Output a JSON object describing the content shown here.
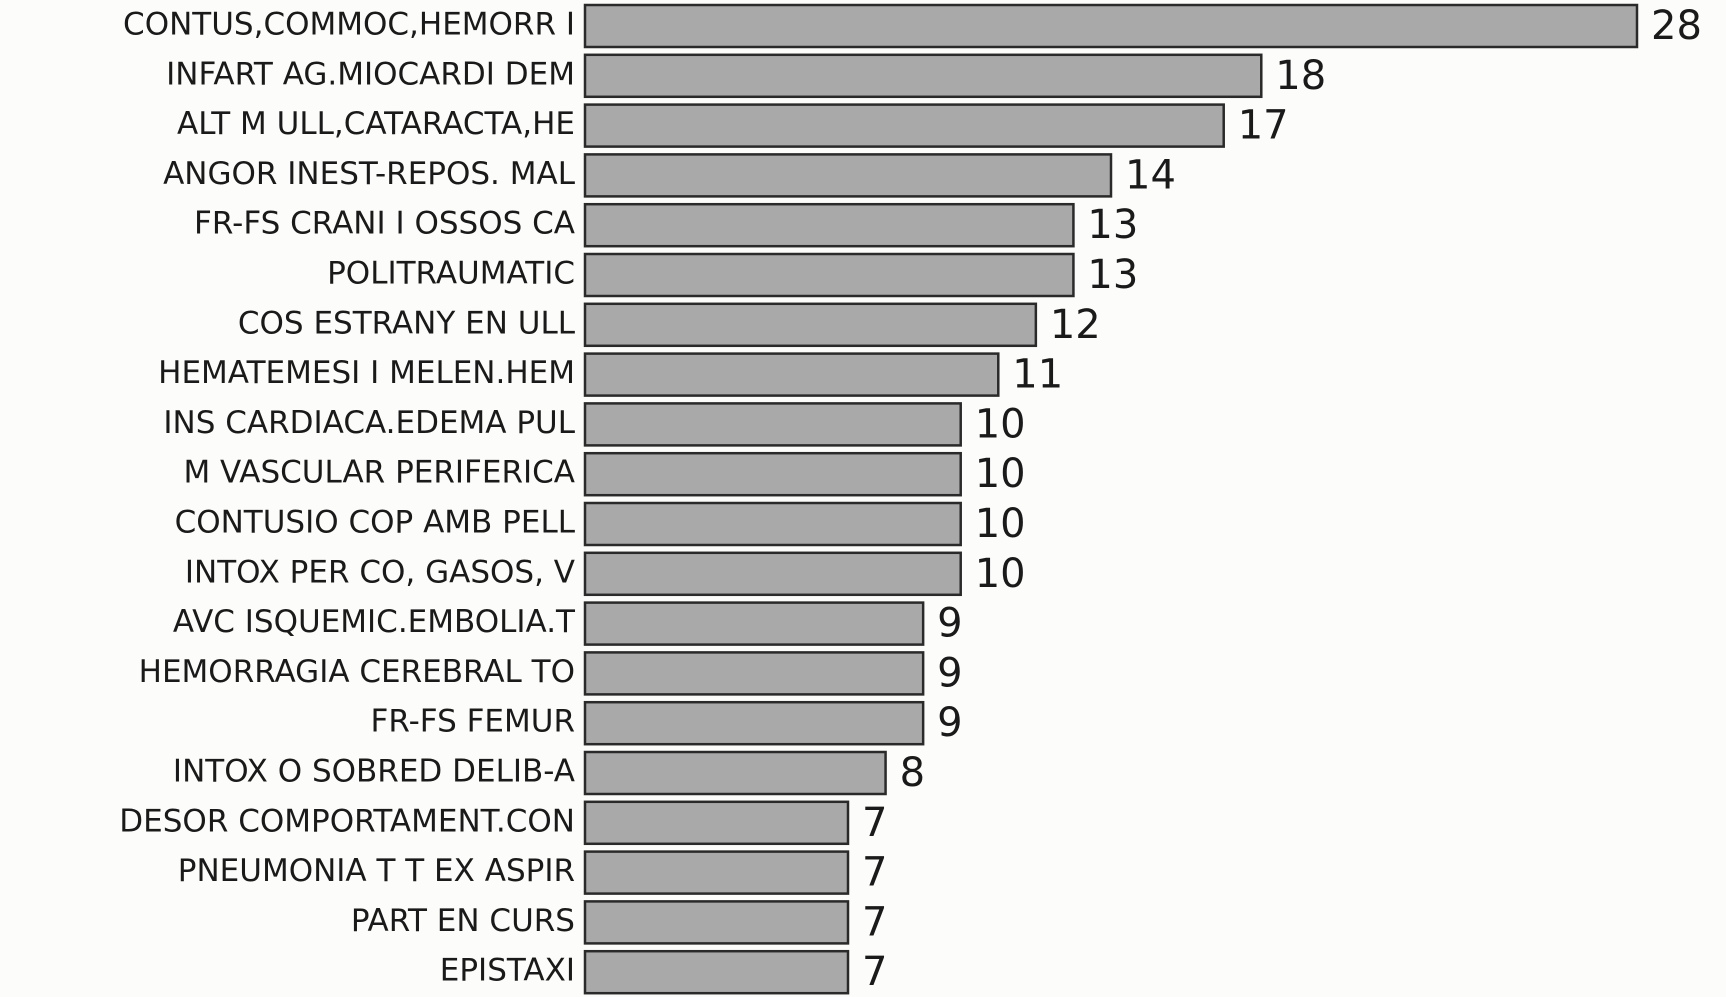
{
  "chart_data": {
    "type": "bar",
    "orientation": "horizontal",
    "categories": [
      "CONTUS,COMMOC,HEMORR I",
      "INFART AG.MIOCARDI DEM",
      "ALT M ULL,CATARACTA,HE",
      "ANGOR INEST-REPOS. MAL",
      "FR-FS CRANI I OSSOS CA",
      "POLITRAUMATIC",
      "COS ESTRANY EN ULL",
      "HEMATEMESI I MELEN.HEM",
      "INS CARDIACA.EDEMA PUL",
      "M VASCULAR PERIFERICA",
      "CONTUSIO COP AMB PELL",
      "INTOX PER CO, GASOS, V",
      "AVC ISQUEMIC.EMBOLIA.T",
      "HEMORRAGIA CEREBRAL TO",
      "FR-FS FEMUR",
      "INTOX O SOBRED DELIB-A",
      "DESOR COMPORTAMENT.CON",
      "PNEUMONIA T T EX ASPIR",
      "PART EN CURS",
      "EPISTAXI"
    ],
    "values": [
      28,
      18,
      17,
      14,
      13,
      13,
      12,
      11,
      10,
      10,
      10,
      10,
      9,
      9,
      9,
      8,
      7,
      7,
      7,
      7
    ],
    "color": "#a9a9a9"
  }
}
